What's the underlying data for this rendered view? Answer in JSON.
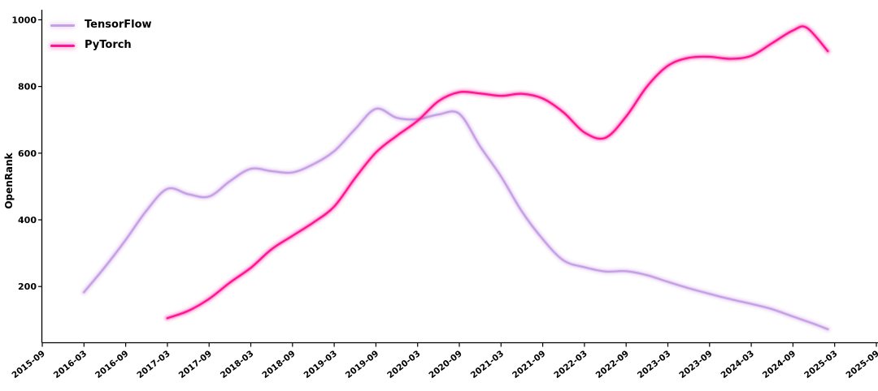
{
  "chart_data": {
    "type": "line",
    "title": "",
    "xlabel": "",
    "ylabel": "OpenRank",
    "grid": false,
    "background": "#ffffff",
    "axis_color": "#000000",
    "legend_position": "upper left",
    "line_style": "smoothed curves with soft neon glow",
    "x_tick_labels": [
      "2015-09",
      "2016-03",
      "2016-09",
      "2017-03",
      "2017-09",
      "2018-03",
      "2018-09",
      "2019-03",
      "2019-09",
      "2020-03",
      "2020-09",
      "2021-03",
      "2021-09",
      "2022-03",
      "2022-09",
      "2023-03",
      "2023-09",
      "2024-03",
      "2024-09",
      "2025-03",
      "2025-09"
    ],
    "y_ticks": [
      200,
      400,
      600,
      800,
      1000
    ],
    "ylim": [
      30,
      1060
    ],
    "xlim": [
      "2015-09",
      "2025-09"
    ],
    "series": [
      {
        "name": "TensorFlow",
        "color": "#c79fe6",
        "points": [
          [
            "2016-03",
            183
          ],
          [
            "2016-06",
            258
          ],
          [
            "2016-09",
            340
          ],
          [
            "2016-12",
            428
          ],
          [
            "2017-03",
            493
          ],
          [
            "2017-06",
            477
          ],
          [
            "2017-09",
            470
          ],
          [
            "2017-12",
            516
          ],
          [
            "2018-03",
            553
          ],
          [
            "2018-06",
            546
          ],
          [
            "2018-09",
            542
          ],
          [
            "2018-12",
            567
          ],
          [
            "2019-03",
            606
          ],
          [
            "2019-06",
            672
          ],
          [
            "2019-09",
            733
          ],
          [
            "2019-12",
            706
          ],
          [
            "2020-03",
            702
          ],
          [
            "2020-06",
            716
          ],
          [
            "2020-09",
            718
          ],
          [
            "2020-12",
            620
          ],
          [
            "2021-03",
            530
          ],
          [
            "2021-06",
            425
          ],
          [
            "2021-09",
            342
          ],
          [
            "2021-12",
            278
          ],
          [
            "2022-03",
            258
          ],
          [
            "2022-06",
            245
          ],
          [
            "2022-09",
            246
          ],
          [
            "2022-12",
            234
          ],
          [
            "2023-03",
            214
          ],
          [
            "2023-06",
            195
          ],
          [
            "2023-09",
            178
          ],
          [
            "2023-12",
            162
          ],
          [
            "2024-03",
            148
          ],
          [
            "2024-06",
            132
          ],
          [
            "2024-09",
            110
          ],
          [
            "2024-12",
            88
          ],
          [
            "2025-02",
            72
          ]
        ]
      },
      {
        "name": "PyTorch",
        "color": "#ff1493",
        "points": [
          [
            "2017-03",
            105
          ],
          [
            "2017-06",
            127
          ],
          [
            "2017-09",
            163
          ],
          [
            "2017-12",
            212
          ],
          [
            "2018-03",
            256
          ],
          [
            "2018-06",
            312
          ],
          [
            "2018-09",
            352
          ],
          [
            "2018-12",
            392
          ],
          [
            "2019-03",
            440
          ],
          [
            "2019-06",
            525
          ],
          [
            "2019-09",
            602
          ],
          [
            "2019-12",
            652
          ],
          [
            "2020-03",
            697
          ],
          [
            "2020-06",
            756
          ],
          [
            "2020-09",
            783
          ],
          [
            "2020-12",
            779
          ],
          [
            "2021-03",
            772
          ],
          [
            "2021-06",
            778
          ],
          [
            "2021-09",
            764
          ],
          [
            "2021-12",
            722
          ],
          [
            "2022-03",
            662
          ],
          [
            "2022-06",
            646
          ],
          [
            "2022-09",
            710
          ],
          [
            "2022-12",
            800
          ],
          [
            "2023-03",
            862
          ],
          [
            "2023-06",
            886
          ],
          [
            "2023-09",
            889
          ],
          [
            "2023-12",
            883
          ],
          [
            "2024-03",
            892
          ],
          [
            "2024-06",
            930
          ],
          [
            "2024-09",
            968
          ],
          [
            "2024-11",
            976
          ],
          [
            "2025-02",
            906
          ]
        ]
      }
    ]
  }
}
